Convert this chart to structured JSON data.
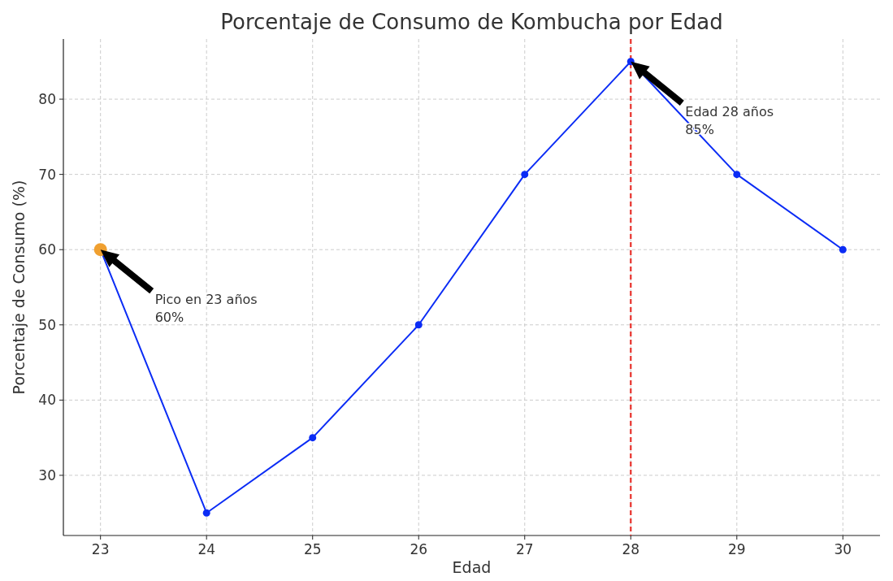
{
  "chart_data": {
    "type": "line",
    "title": "Porcentaje de Consumo de Kombucha por Edad",
    "xlabel": "Edad",
    "ylabel": "Porcentaje de Consumo (%)",
    "x": [
      23,
      24,
      25,
      26,
      27,
      28,
      29,
      30
    ],
    "series": [
      {
        "color": "#0b2cf5",
        "values": [
          60,
          25,
          35,
          50,
          70,
          85,
          70,
          60
        ]
      },
      {
        "type": "scatter",
        "color": "#f0a030",
        "x": [
          23
        ],
        "values": [
          60
        ]
      }
    ],
    "xlim": [
      22.65,
      30.35
    ],
    "xticks": [
      23,
      24,
      25,
      26,
      27,
      28,
      29,
      30
    ],
    "ylim": [
      22,
      88
    ],
    "yticks": [
      30,
      40,
      50,
      60,
      70,
      80
    ],
    "grid": true,
    "marker": "circle",
    "line_style": "solid",
    "ref_lines": [
      {
        "axis": "x",
        "value": 28,
        "color": "#e8302a",
        "line_style": "dashed"
      }
    ],
    "annotations": [
      "Pico en 23 años\n60%",
      "Edad 28 años\n85%"
    ]
  }
}
